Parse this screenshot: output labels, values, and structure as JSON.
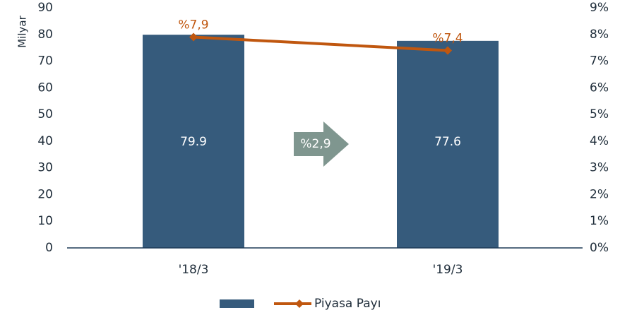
{
  "chart_data": {
    "type": "bar",
    "categories": [
      "'18/3",
      "'19/3"
    ],
    "series": [
      {
        "color": "#365b7c",
        "values": [
          79.9,
          77.6
        ]
      },
      {
        "name": "Piyasa Payı",
        "type": "line",
        "axis": "y2",
        "color": "#c0570f",
        "values": [
          7.9,
          7.4
        ],
        "value_labels": [
          "%7,9",
          "%7,4"
        ]
      }
    ],
    "ylabel": "Milyar",
    "ylim": [
      0,
      90
    ],
    "yticks": [
      0,
      10,
      20,
      30,
      40,
      50,
      60,
      70,
      80,
      90
    ],
    "y2lim": [
      0,
      9
    ],
    "y2ticks": [
      {
        "value": 0,
        "label": "0%"
      },
      {
        "value": 1,
        "label": "1%"
      },
      {
        "value": 2,
        "label": "2%"
      },
      {
        "value": 3,
        "label": "3%"
      },
      {
        "value": 4,
        "label": "4%"
      },
      {
        "value": 5,
        "label": "5%"
      },
      {
        "value": 6,
        "label": "6%"
      },
      {
        "value": 7,
        "label": "7%"
      },
      {
        "value": 8,
        "label": "8%"
      },
      {
        "value": 9,
        "label": "9%"
      }
    ],
    "annotation": "%2,9",
    "annotation_color": "#7f968f",
    "legend": "bottom"
  }
}
